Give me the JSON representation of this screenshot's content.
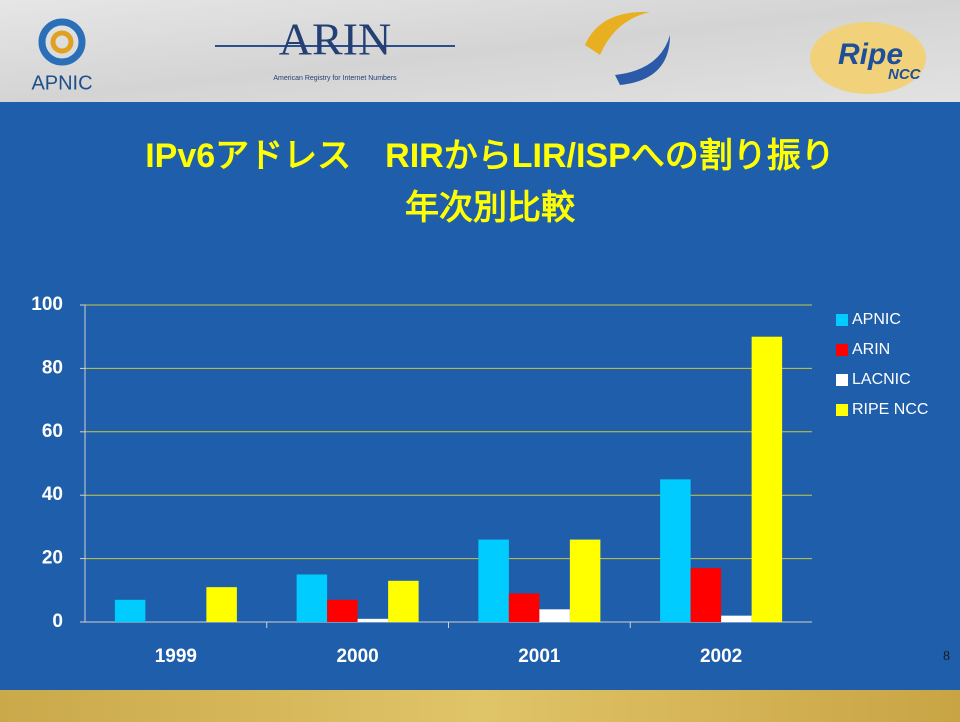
{
  "header": {
    "logos": [
      "APNIC",
      "ARIN",
      "American Registry for Internet Numbers",
      "Ripe",
      "NCC"
    ]
  },
  "page_number": "8",
  "chart_data": {
    "type": "bar",
    "title": [
      "IPv6アドレス　RIRからLIR/ISPへの割り振り",
      "年次別比較"
    ],
    "categories": [
      "1999",
      "2000",
      "2001",
      "2002"
    ],
    "series": [
      {
        "name": "APNIC",
        "color": "#00ccff",
        "values": [
          7,
          15,
          26,
          45
        ]
      },
      {
        "name": "ARIN",
        "color": "#ff0000",
        "values": [
          0,
          7,
          9,
          17
        ]
      },
      {
        "name": "LACNIC",
        "color": "#ffffff",
        "values": [
          0,
          1,
          4,
          2
        ]
      },
      {
        "name": "RIPE NCC",
        "color": "#ffff00",
        "values": [
          11,
          13,
          26,
          90
        ]
      }
    ],
    "ylim": [
      0,
      100
    ],
    "yticks": [
      0,
      20,
      40,
      60,
      80,
      100
    ],
    "grid": true,
    "legend": "right"
  }
}
